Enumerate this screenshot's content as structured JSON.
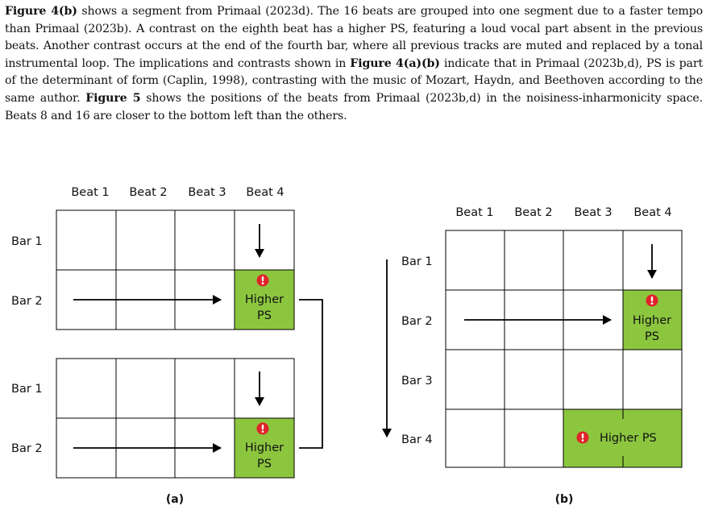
{
  "paragraph": {
    "s1_bold": "Figure 4(b)",
    "s1": " shows a segment from Primaal (2023d). The 16 beats are grouped into one segment due to a faster tempo than Primaal (2023b). A contrast on the eighth beat has a higher PS, featuring a loud vocal part absent in the previous beats. Another contrast occurs at the end of the fourth bar, where all previous tracks are muted and replaced by a tonal instrumental loop. The implications and contrasts shown in ",
    "s2_bold": "Figure 4(a)(b)",
    "s2": " indicate that in Primaal (2023b,d), PS is part of the determinant of form (Caplin, 1998), contrasting with the music of Mozart, Haydn, and Beethoven according to the same author. ",
    "s3_bold": "Figure 5",
    "s3": " shows the positions of the beats from Primaal (2023b,d) in the noisiness-inharmonicity space. Beats 8 and 16 are closer to the bottom left than the others."
  },
  "figure": {
    "colors": {
      "highlight": "#8cc63f",
      "alert": "#e0242b",
      "line": "#000000"
    },
    "icon": "exclamation-circle-icon",
    "beats": [
      "Beat 1",
      "Beat 2",
      "Beat 3",
      "Beat 4"
    ],
    "panel_a": {
      "caption": "(a)",
      "grid1_bars": [
        "Bar 1",
        "Bar 2"
      ],
      "grid2_bars": [
        "Bar 1",
        "Bar 2"
      ],
      "highlight_l1": "Higher",
      "highlight_l2": "PS"
    },
    "panel_b": {
      "caption": "(b)",
      "bars": [
        "Bar 1",
        "Bar 2",
        "Bar 3",
        "Bar 4"
      ],
      "highlight_l1": "Higher",
      "highlight_l2": "PS",
      "highlight_wide": "Higher PS"
    }
  }
}
